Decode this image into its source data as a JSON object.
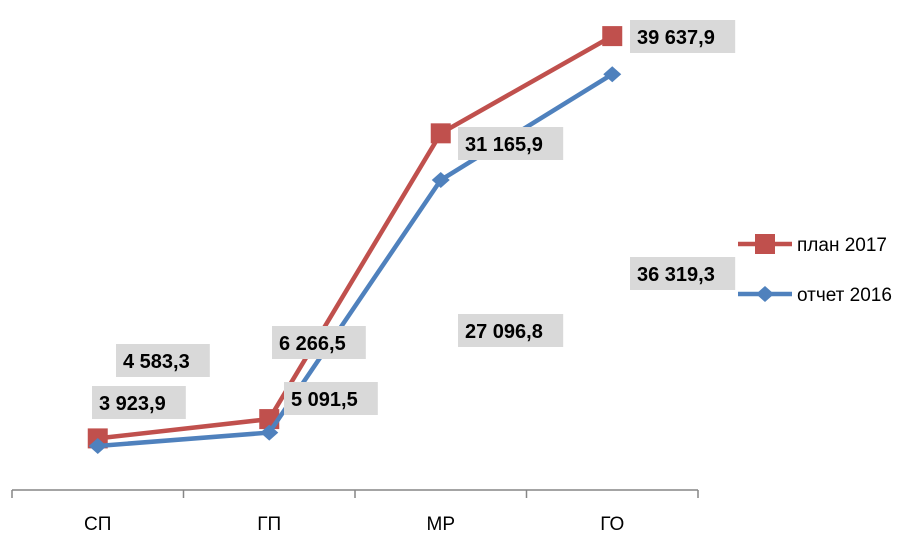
{
  "chart_data": {
    "type": "line",
    "title": "",
    "xlabel": "",
    "ylabel": "",
    "categories": [
      "СП",
      "ГП",
      "МР",
      "ГО"
    ],
    "ylim": [
      0,
      42000
    ],
    "grid": false,
    "legend": "right",
    "series": [
      {
        "name": "план 2017",
        "values": [
          4583.3,
          6266.5,
          31165.9,
          39637.9
        ],
        "labels": [
          "4 583,3",
          "6 266,5",
          "31 165,9",
          "39 637,9"
        ],
        "color": "#c0504d",
        "marker": "square"
      },
      {
        "name": "отчет 2016",
        "values": [
          3923.9,
          5091.5,
          27096.8,
          36319.3
        ],
        "labels": [
          "3 923,9",
          "5 091,5",
          "27 096,8",
          "36 319,3"
        ],
        "color": "#4f81bd",
        "marker": "diamond"
      }
    ]
  }
}
